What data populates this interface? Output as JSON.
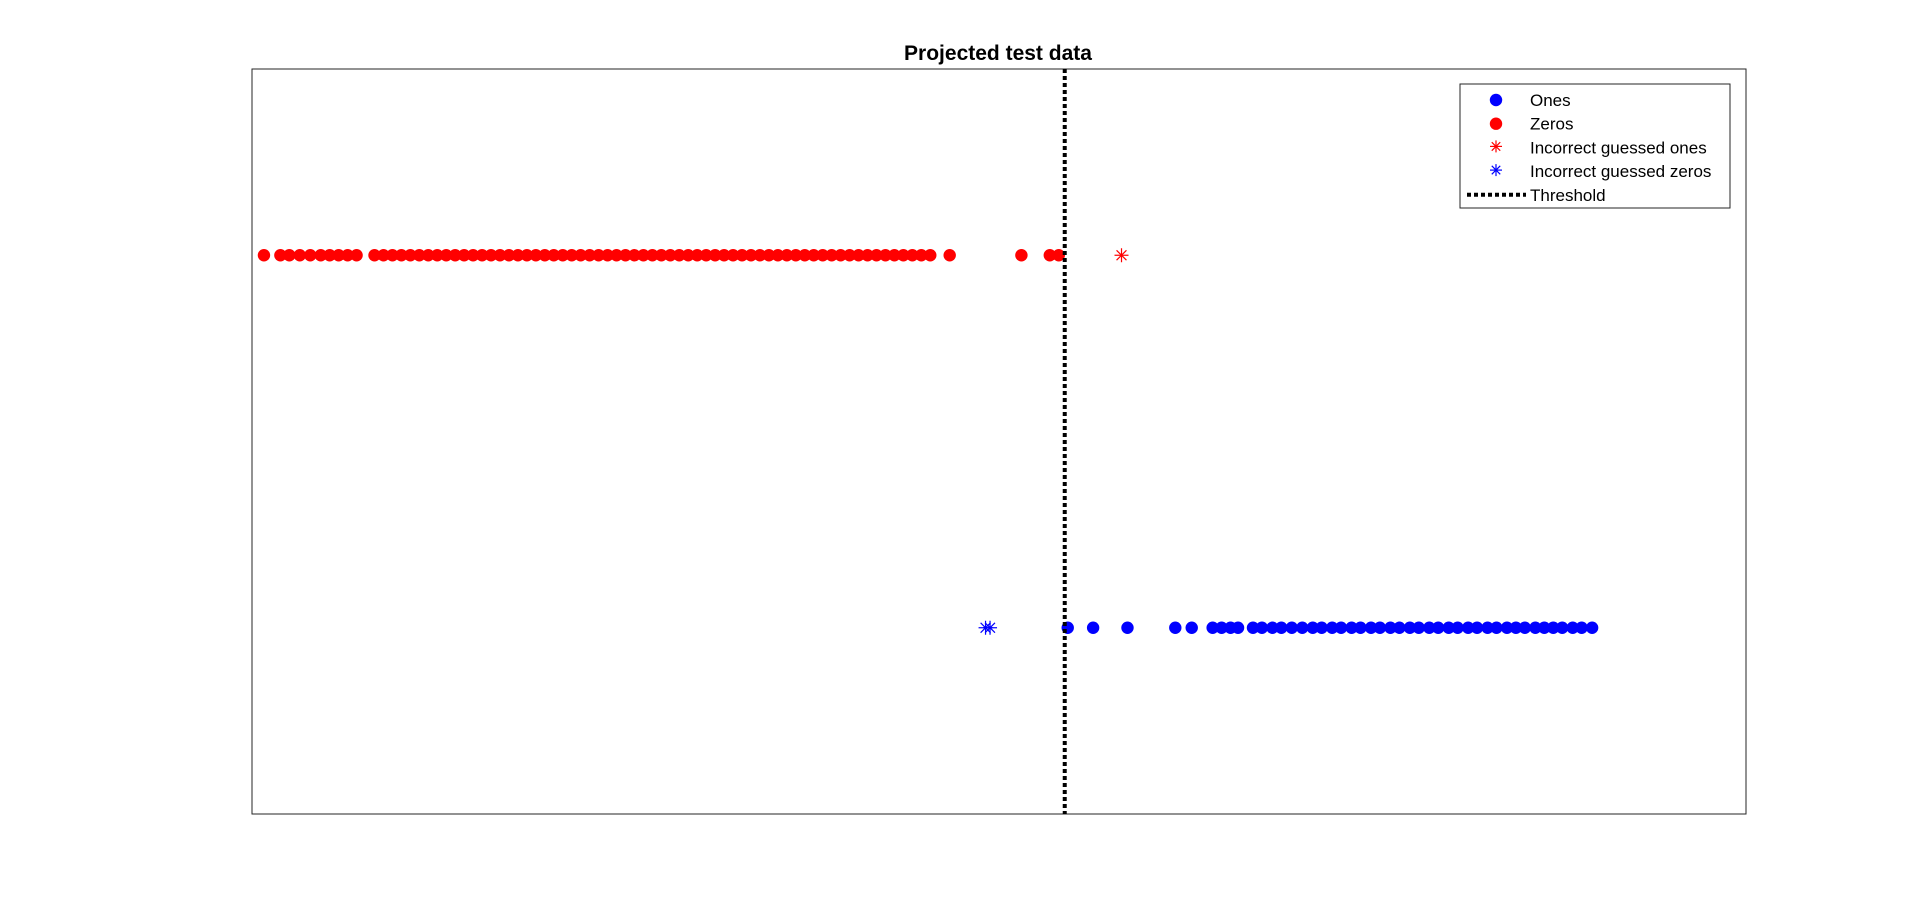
{
  "chart_data": {
    "type": "scatter",
    "title": "Projected test data",
    "xlabel": "",
    "ylabel": "",
    "xlim": [
      0,
      100
    ],
    "ylim": [
      0,
      1
    ],
    "grid": false,
    "legend_position": "top-right",
    "threshold": 54.4,
    "series": [
      {
        "name": "Ones",
        "color": "#0000ff",
        "marker": "dot",
        "y": 0.25,
        "x": [
          54.6,
          56.3,
          58.6,
          61.8,
          62.9,
          64.3,
          64.9,
          65.5,
          66.0,
          67.0,
          67.6,
          68.3,
          68.9,
          69.6,
          70.3,
          71.0,
          71.6,
          72.3,
          72.9,
          73.6,
          74.2,
          74.9,
          75.5,
          76.2,
          76.8,
          77.5,
          78.1,
          78.8,
          79.4,
          80.1,
          80.7,
          81.4,
          82.0,
          82.7,
          83.3,
          84.0,
          84.6,
          85.2,
          85.9,
          86.5,
          87.1,
          87.7,
          88.4,
          89.0,
          89.7
        ]
      },
      {
        "name": "Zeros",
        "color": "#ff0000",
        "marker": "dot",
        "y": 0.75,
        "x": [
          0.8,
          1.9,
          2.5,
          3.2,
          3.9,
          4.6,
          5.2,
          5.8,
          6.4,
          7.0,
          8.2,
          8.8,
          9.4,
          10.0,
          10.6,
          11.2,
          11.8,
          12.4,
          13.0,
          13.6,
          14.2,
          14.8,
          15.4,
          16.0,
          16.6,
          17.2,
          17.8,
          18.4,
          19.0,
          19.6,
          20.2,
          20.8,
          21.4,
          22.0,
          22.6,
          23.2,
          23.8,
          24.4,
          25.0,
          25.6,
          26.2,
          26.8,
          27.4,
          28.0,
          28.6,
          29.2,
          29.8,
          30.4,
          31.0,
          31.6,
          32.2,
          32.8,
          33.4,
          34.0,
          34.6,
          35.2,
          35.8,
          36.4,
          37.0,
          37.6,
          38.2,
          38.8,
          39.4,
          40.0,
          40.6,
          41.2,
          41.8,
          42.4,
          43.0,
          43.6,
          44.2,
          44.8,
          45.4,
          46.7,
          51.5,
          53.4,
          54.0
        ]
      },
      {
        "name": "Incorrect guessed ones",
        "color": "#ff0000",
        "marker": "star",
        "y": 0.75,
        "x": [
          58.2
        ]
      },
      {
        "name": "Incorrect guessed zeros",
        "color": "#0000ff",
        "marker": "star",
        "y": 0.25,
        "x": [
          49.1,
          49.4
        ]
      },
      {
        "name": "Threshold",
        "color": "#000000",
        "marker": "dotted-line"
      }
    ]
  }
}
